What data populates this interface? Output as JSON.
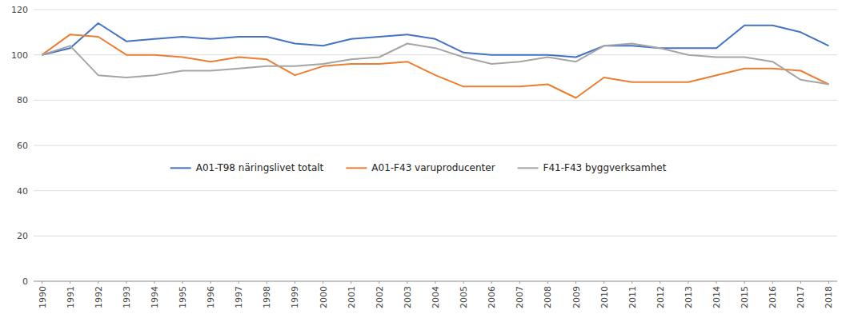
{
  "chart_data": {
    "type": "line",
    "x": [
      1990,
      1991,
      1992,
      1993,
      1994,
      1995,
      1996,
      1997,
      1998,
      1999,
      2000,
      2001,
      2002,
      2003,
      2004,
      2005,
      2006,
      2007,
      2008,
      2009,
      2010,
      2011,
      2012,
      2013,
      2014,
      2015,
      2016,
      2017,
      2018
    ],
    "series": [
      {
        "name": "A01-T98 näringslivet totalt",
        "color": "#4472C4",
        "values": [
          100,
          103,
          114,
          106,
          107,
          108,
          107,
          108,
          108,
          105,
          104,
          107,
          108,
          109,
          107,
          101,
          100,
          100,
          100,
          99,
          104,
          104,
          103,
          103,
          103,
          113,
          113,
          110,
          104
        ]
      },
      {
        "name": "A01-F43 varuproducenter",
        "color": "#ED7D31",
        "values": [
          100,
          109,
          108,
          100,
          100,
          99,
          97,
          99,
          98,
          91,
          95,
          96,
          96,
          97,
          91,
          86,
          86,
          86,
          87,
          81,
          90,
          88,
          88,
          88,
          91,
          94,
          94,
          93,
          87
        ]
      },
      {
        "name": "F41-F43 byggverksamhet",
        "color": "#A5A5A5",
        "values": [
          100,
          104,
          91,
          90,
          91,
          93,
          93,
          94,
          95,
          95,
          96,
          98,
          99,
          105,
          103,
          99,
          96,
          97,
          99,
          97,
          104,
          105,
          103,
          100,
          99,
          99,
          97,
          89,
          87
        ]
      }
    ],
    "xlim": [
      1989.7,
      2018.3
    ],
    "xticks": [
      1990,
      1991,
      1992,
      1993,
      1994,
      1995,
      1996,
      1997,
      1998,
      1999,
      2000,
      2001,
      2002,
      2003,
      2004,
      2005,
      2006,
      2007,
      2008,
      2009,
      2010,
      2011,
      2012,
      2013,
      2014,
      2015,
      2016,
      2017,
      2018
    ],
    "ylim": [
      0,
      120
    ],
    "yticks": [
      0,
      20,
      40,
      60,
      80,
      100,
      120
    ],
    "grid": true,
    "legend": "lower left"
  }
}
